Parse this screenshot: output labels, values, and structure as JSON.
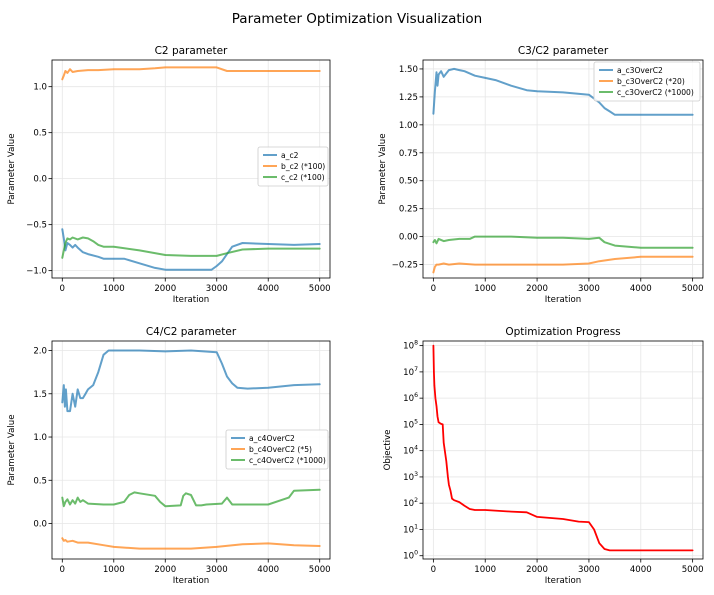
{
  "suptitle": "Parameter Optimization Visualization",
  "chart_data": [
    {
      "type": "line",
      "title": "C2 parameter",
      "xlabel": "Iteration",
      "ylabel": "Parameter Value",
      "xlim": [
        -200,
        5200
      ],
      "ylim": [
        -1.08,
        1.29
      ],
      "xticks": [
        0,
        1000,
        2000,
        3000,
        4000,
        5000
      ],
      "yticks": [
        -1.0,
        -0.5,
        0.0,
        0.5,
        1.0
      ],
      "ytick_labels": [
        "−1.0",
        "−0.5",
        "0.0",
        "0.5",
        "1.0"
      ],
      "grid": true,
      "legend_position": "center-right",
      "series": [
        {
          "name": "a_c2",
          "color": "#1f77b4",
          "x": [
            0,
            30,
            60,
            100,
            150,
            200,
            250,
            300,
            400,
            500,
            700,
            800,
            1000,
            1200,
            1500,
            1800,
            2000,
            2500,
            2900,
            3000,
            3100,
            3200,
            3300,
            3500,
            4000,
            4500,
            5000
          ],
          "y": [
            -0.55,
            -0.65,
            -0.78,
            -0.7,
            -0.72,
            -0.75,
            -0.72,
            -0.75,
            -0.8,
            -0.82,
            -0.85,
            -0.87,
            -0.87,
            -0.87,
            -0.92,
            -0.97,
            -0.99,
            -0.99,
            -0.99,
            -0.95,
            -0.9,
            -0.82,
            -0.74,
            -0.7,
            -0.71,
            -0.72,
            -0.71
          ]
        },
        {
          "name": "b_c2 (*100)",
          "color": "#ff7f0e",
          "x": [
            0,
            30,
            60,
            100,
            150,
            200,
            300,
            500,
            700,
            1000,
            1500,
            1800,
            2000,
            2500,
            3000,
            3200,
            3500,
            4000,
            4500,
            5000
          ],
          "y": [
            1.08,
            1.12,
            1.17,
            1.15,
            1.19,
            1.16,
            1.17,
            1.18,
            1.18,
            1.19,
            1.19,
            1.2,
            1.21,
            1.21,
            1.21,
            1.17,
            1.17,
            1.17,
            1.17,
            1.17
          ]
        },
        {
          "name": "c_c2 (*100)",
          "color": "#2ca02c",
          "x": [
            0,
            30,
            60,
            100,
            150,
            200,
            300,
            400,
            500,
            600,
            700,
            800,
            1000,
            1500,
            2000,
            2500,
            3000,
            3200,
            3500,
            4000,
            4500,
            5000
          ],
          "y": [
            -0.86,
            -0.78,
            -0.7,
            -0.65,
            -0.66,
            -0.64,
            -0.66,
            -0.64,
            -0.65,
            -0.68,
            -0.72,
            -0.74,
            -0.74,
            -0.78,
            -0.83,
            -0.84,
            -0.84,
            -0.81,
            -0.77,
            -0.76,
            -0.76,
            -0.76
          ]
        }
      ]
    },
    {
      "type": "line",
      "title": "C3/C2 parameter",
      "xlabel": "Iteration",
      "ylabel": "Parameter Value",
      "xlim": [
        -200,
        5200
      ],
      "ylim": [
        -0.37,
        1.58
      ],
      "xticks": [
        0,
        1000,
        2000,
        3000,
        4000,
        5000
      ],
      "yticks": [
        -0.25,
        0.0,
        0.25,
        0.5,
        0.75,
        1.0,
        1.25,
        1.5
      ],
      "ytick_labels": [
        "−0.25",
        "0.00",
        "0.25",
        "0.50",
        "0.75",
        "1.00",
        "1.25",
        "1.50"
      ],
      "grid": true,
      "legend_position": "top-right",
      "series": [
        {
          "name": "a_c3OverC2",
          "color": "#1f77b4",
          "x": [
            0,
            30,
            60,
            80,
            100,
            150,
            200,
            250,
            300,
            400,
            500,
            600,
            800,
            1000,
            1200,
            1500,
            1800,
            2000,
            2500,
            3000,
            3200,
            3300,
            3400,
            3500,
            4000,
            4500,
            5000
          ],
          "y": [
            1.1,
            1.3,
            1.47,
            1.35,
            1.45,
            1.48,
            1.43,
            1.46,
            1.49,
            1.5,
            1.49,
            1.48,
            1.44,
            1.42,
            1.4,
            1.35,
            1.31,
            1.3,
            1.29,
            1.27,
            1.2,
            1.15,
            1.12,
            1.09,
            1.09,
            1.09,
            1.09
          ]
        },
        {
          "name": "b_c3OverC2 (*20)",
          "color": "#ff7f0e",
          "x": [
            0,
            30,
            60,
            100,
            200,
            300,
            500,
            800,
            1000,
            1500,
            2000,
            2500,
            3000,
            3200,
            3500,
            4000,
            4500,
            5000
          ],
          "y": [
            -0.32,
            -0.27,
            -0.25,
            -0.25,
            -0.24,
            -0.25,
            -0.24,
            -0.25,
            -0.25,
            -0.25,
            -0.25,
            -0.25,
            -0.24,
            -0.22,
            -0.2,
            -0.18,
            -0.18,
            -0.18
          ]
        },
        {
          "name": "c_c3OverC2 (*1000)",
          "color": "#2ca02c",
          "x": [
            0,
            30,
            60,
            100,
            200,
            300,
            500,
            700,
            800,
            1000,
            1500,
            2000,
            2500,
            3000,
            3200,
            3300,
            3500,
            4000,
            4500,
            5000
          ],
          "y": [
            -0.05,
            -0.03,
            -0.06,
            -0.02,
            -0.04,
            -0.03,
            -0.02,
            -0.02,
            0.0,
            0.0,
            0.0,
            -0.01,
            -0.01,
            -0.02,
            -0.01,
            -0.05,
            -0.08,
            -0.1,
            -0.1,
            -0.1
          ]
        }
      ]
    },
    {
      "type": "line",
      "title": "C4/C2 parameter",
      "xlabel": "Iteration",
      "ylabel": "Parameter Value",
      "xlim": [
        -200,
        5200
      ],
      "ylim": [
        -0.41,
        2.11
      ],
      "xticks": [
        0,
        1000,
        2000,
        3000,
        4000,
        5000
      ],
      "yticks": [
        0.0,
        0.5,
        1.0,
        1.5,
        2.0
      ],
      "ytick_labels": [
        "0.0",
        "0.5",
        "1.0",
        "1.5",
        "2.0"
      ],
      "grid": true,
      "legend_position": "center-right",
      "series": [
        {
          "name": "a_c4OverC2",
          "color": "#1f77b4",
          "x": [
            0,
            30,
            50,
            70,
            100,
            150,
            200,
            250,
            300,
            350,
            400,
            450,
            500,
            600,
            700,
            800,
            900,
            1000,
            1500,
            2000,
            2500,
            3000,
            3100,
            3200,
            3300,
            3400,
            3600,
            4000,
            4500,
            5000
          ],
          "y": [
            1.4,
            1.6,
            1.35,
            1.55,
            1.3,
            1.3,
            1.5,
            1.35,
            1.55,
            1.45,
            1.45,
            1.5,
            1.55,
            1.6,
            1.75,
            1.95,
            2.0,
            2.0,
            2.0,
            1.99,
            2.0,
            1.98,
            1.85,
            1.7,
            1.62,
            1.57,
            1.56,
            1.57,
            1.6,
            1.61
          ]
        },
        {
          "name": "b_c4OverC2 (*5)",
          "color": "#ff7f0e",
          "x": [
            0,
            30,
            60,
            100,
            200,
            300,
            500,
            800,
            1000,
            1500,
            2000,
            2500,
            3000,
            3500,
            4000,
            4500,
            5000
          ],
          "y": [
            -0.17,
            -0.2,
            -0.19,
            -0.21,
            -0.2,
            -0.22,
            -0.22,
            -0.25,
            -0.27,
            -0.29,
            -0.29,
            -0.29,
            -0.27,
            -0.24,
            -0.23,
            -0.25,
            -0.26
          ]
        },
        {
          "name": "c_c4OverC2 (*1000)",
          "color": "#2ca02c",
          "x": [
            0,
            30,
            60,
            100,
            150,
            200,
            250,
            300,
            350,
            400,
            500,
            800,
            1000,
            1200,
            1300,
            1400,
            1500,
            1800,
            1900,
            2000,
            2300,
            2350,
            2400,
            2500,
            2600,
            2700,
            2800,
            3100,
            3200,
            3300,
            4000,
            4400,
            4500,
            5000
          ],
          "y": [
            0.3,
            0.2,
            0.25,
            0.28,
            0.22,
            0.27,
            0.23,
            0.3,
            0.25,
            0.27,
            0.23,
            0.22,
            0.22,
            0.25,
            0.33,
            0.36,
            0.35,
            0.32,
            0.25,
            0.2,
            0.21,
            0.32,
            0.35,
            0.33,
            0.21,
            0.21,
            0.22,
            0.23,
            0.3,
            0.22,
            0.22,
            0.3,
            0.38,
            0.39
          ]
        }
      ]
    },
    {
      "type": "line",
      "title": "Optimization Progress",
      "xlabel": "Iteration",
      "ylabel": "Objective",
      "yscale": "log",
      "xlim": [
        -200,
        5200
      ],
      "ylim": [
        0.75,
        150000000
      ],
      "xticks": [
        0,
        1000,
        2000,
        3000,
        4000,
        5000
      ],
      "yticks": [
        1,
        10,
        100,
        1000,
        10000,
        100000,
        1000000,
        10000000,
        100000000
      ],
      "ytick_labels": [
        "10^0",
        "10^1",
        "10^2",
        "10^3",
        "10^4",
        "10^5",
        "10^6",
        "10^7",
        "10^8"
      ],
      "grid": true,
      "series": [
        {
          "name": "Objective",
          "color": "#ff0000",
          "x": [
            0,
            10,
            20,
            40,
            60,
            80,
            100,
            130,
            150,
            180,
            200,
            250,
            280,
            300,
            330,
            360,
            400,
            500,
            600,
            700,
            800,
            1000,
            1500,
            1800,
            2000,
            2500,
            2800,
            3000,
            3100,
            3200,
            3300,
            3400,
            4000,
            4500,
            5000
          ],
          "y": [
            100000000,
            10000000,
            3000000,
            1000000,
            500000,
            200000,
            120000,
            110000,
            105000,
            100000,
            20000,
            4000,
            1000,
            500,
            300,
            150,
            130,
            110,
            80,
            60,
            55,
            55,
            48,
            45,
            30,
            25,
            20,
            19,
            10,
            3,
            1.8,
            1.6,
            1.6,
            1.6,
            1.6
          ]
        }
      ]
    }
  ]
}
